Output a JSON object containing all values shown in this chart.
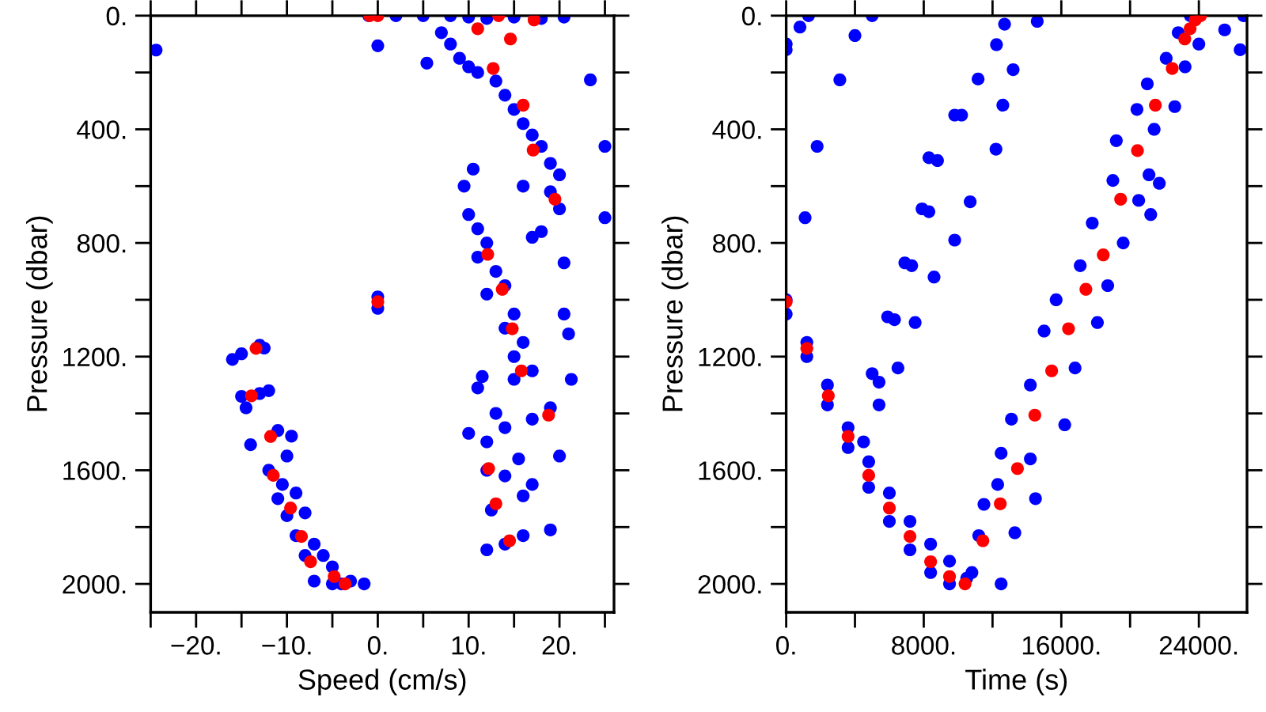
{
  "chart_data": [
    {
      "type": "scatter",
      "xlabel": "Speed (cm/s)",
      "ylabel": "Pressure (dbar)",
      "marker": "circle",
      "grid": false,
      "legend": false,
      "xlim": [
        -25,
        26
      ],
      "ylim": [
        2100,
        0
      ],
      "xticks": [
        {
          "value": -25,
          "label": null
        },
        {
          "value": -20,
          "label": "−20."
        },
        {
          "value": -15,
          "label": null
        },
        {
          "value": -10,
          "label": "−10."
        },
        {
          "value": -5,
          "label": null
        },
        {
          "value": 0,
          "label": "0."
        },
        {
          "value": 5,
          "label": null
        },
        {
          "value": 10,
          "label": "10."
        },
        {
          "value": 15,
          "label": null
        },
        {
          "value": 20,
          "label": "20."
        },
        {
          "value": 25,
          "label": null
        }
      ],
      "yticks": [
        {
          "value": 0,
          "label": "0."
        },
        {
          "value": 200,
          "label": null
        },
        {
          "value": 400,
          "label": "400."
        },
        {
          "value": 600,
          "label": null
        },
        {
          "value": 800,
          "label": "800."
        },
        {
          "value": 1000,
          "label": null
        },
        {
          "value": 1200,
          "label": "1200."
        },
        {
          "value": 1400,
          "label": null
        },
        {
          "value": 1600,
          "label": "1600."
        },
        {
          "value": 1800,
          "label": null
        },
        {
          "value": 2000,
          "label": "2000."
        }
      ],
      "series": [
        {
          "color": "#0000ff",
          "x": [
            -1,
            2,
            5,
            8,
            10,
            12,
            15,
            18,
            20.5,
            -24.4,
            0,
            5.4,
            23.4,
            25,
            25,
            7,
            8,
            9,
            10,
            11,
            13,
            14,
            15,
            16,
            17,
            18,
            19,
            20,
            16,
            19,
            20,
            18,
            17,
            20.5,
            10.5,
            9.5,
            10,
            11,
            12,
            11,
            13,
            14,
            12,
            15,
            14,
            16,
            15,
            17,
            15,
            11,
            11.5,
            19,
            17,
            13,
            10,
            12,
            14,
            15.5,
            20,
            12,
            14,
            16,
            12.5,
            17,
            12,
            14,
            16,
            19,
            21,
            21.3,
            20.5,
            -16,
            -15,
            -13,
            -12.5,
            -15,
            -13,
            -12,
            -14.5,
            -14,
            -11,
            -9.5,
            -10,
            -12,
            -10.5,
            -11,
            -9,
            -10,
            -8,
            -9,
            -7,
            -6,
            -8,
            -5,
            -7,
            -5,
            -3,
            -1.5,
            -4,
            0,
            0
          ],
          "values": [
            0,
            0,
            0,
            0,
            5,
            10,
            5,
            10,
            5,
            121,
            106,
            167,
            226,
            460,
            711,
            60,
            100,
            150,
            180,
            200,
            230,
            280,
            330,
            380,
            420,
            460,
            520,
            560,
            600,
            620,
            680,
            760,
            780,
            870,
            540,
            600,
            700,
            750,
            800,
            850,
            900,
            950,
            980,
            1050,
            1100,
            1150,
            1200,
            1250,
            1280,
            1310,
            1270,
            1380,
            1420,
            1400,
            1470,
            1500,
            1450,
            1560,
            1550,
            1600,
            1620,
            1690,
            1740,
            1650,
            1880,
            1860,
            1830,
            1810,
            1120,
            1280,
            1050,
            1210,
            1190,
            1160,
            1170,
            1340,
            1330,
            1320,
            1380,
            1510,
            1460,
            1480,
            1550,
            1600,
            1650,
            1700,
            1680,
            1760,
            1750,
            1830,
            1860,
            1900,
            1900,
            1940,
            1990,
            2000,
            1990,
            2000,
            2000,
            990,
            1030
          ]
        },
        {
          "color": "#ff0000",
          "x": [
            -0.9,
            0,
            11,
            13.3,
            17.2,
            14.6,
            12.7,
            16,
            17.1,
            19.5,
            12.1,
            13.7,
            14.8,
            15.8,
            18.8,
            12.2,
            13,
            14.5,
            0,
            -13.4,
            -13.9,
            -11.8,
            -11.5,
            -9.6,
            -8.4,
            -7.4,
            -4.8,
            -3.6
          ],
          "values": [
            0,
            0,
            46,
            0,
            15,
            82,
            186,
            315,
            473,
            646,
            840,
            963,
            1102,
            1250,
            1406,
            1594,
            1718,
            1848,
            1007,
            1171,
            1338,
            1481,
            1618,
            1733,
            1833,
            1922,
            1974,
            2000
          ]
        }
      ]
    },
    {
      "type": "scatter",
      "xlabel": "Time (s)",
      "ylabel": "Pressure (dbar)",
      "marker": "circle",
      "grid": false,
      "legend": false,
      "xlim": [
        0,
        26800
      ],
      "ylim": [
        2100,
        0
      ],
      "xticks": [
        {
          "value": 0,
          "label": "0."
        },
        {
          "value": 4000,
          "label": null
        },
        {
          "value": 8000,
          "label": "8000."
        },
        {
          "value": 12000,
          "label": null
        },
        {
          "value": 16000,
          "label": "16000."
        },
        {
          "value": 20000,
          "label": null
        },
        {
          "value": 24000,
          "label": "24000."
        }
      ],
      "yticks": [
        {
          "value": 0,
          "label": "0."
        },
        {
          "value": 200,
          "label": null
        },
        {
          "value": 400,
          "label": "400."
        },
        {
          "value": 600,
          "label": null
        },
        {
          "value": 800,
          "label": "800."
        },
        {
          "value": 1000,
          "label": null
        },
        {
          "value": 1200,
          "label": "1200."
        },
        {
          "value": 1400,
          "label": null
        },
        {
          "value": 1600,
          "label": "1600."
        },
        {
          "value": 1800,
          "label": null
        },
        {
          "value": 2000,
          "label": "2000."
        }
      ],
      "series": [
        {
          "color": "#0000ff",
          "x": [
            0,
            0,
            800,
            1300,
            1100,
            3120,
            1800,
            4000,
            5000,
            11160,
            13200,
            12230,
            12700,
            14600,
            10200,
            9800,
            8300,
            8800,
            7900,
            8300,
            10700,
            12200,
            12600,
            9800,
            6900,
            7300,
            8600,
            5900,
            6300,
            7500,
            5000,
            5400,
            6500,
            5400,
            0,
            0,
            1200,
            1200,
            2400,
            2400,
            3600,
            3600,
            4500,
            4800,
            4800,
            6000,
            6000,
            7200,
            7200,
            8400,
            8400,
            9500,
            9500,
            10500,
            12500,
            10800,
            11200,
            13300,
            11500,
            14500,
            12300,
            14200,
            12500,
            13100,
            16200,
            14200,
            16800,
            15000,
            18100,
            15700,
            18700,
            17100,
            19600,
            17800,
            20500,
            19000,
            21100,
            19200,
            21400,
            20400,
            22600,
            21000,
            23200,
            22100,
            24000,
            22800,
            25500,
            23500,
            26600,
            26400,
            21700,
            21200
          ],
          "values": [
            100,
            120,
            40,
            0,
            711,
            226,
            460,
            70,
            0,
            223,
            190,
            102,
            30,
            20,
            350,
            350,
            500,
            510,
            680,
            690,
            655,
            470,
            315,
            790,
            870,
            880,
            920,
            1060,
            1070,
            1080,
            1260,
            1290,
            1240,
            1370,
            1000,
            1050,
            1150,
            1200,
            1300,
            1370,
            1450,
            1520,
            1500,
            1570,
            1660,
            1680,
            1780,
            1780,
            1880,
            1860,
            1960,
            1920,
            2000,
            1980,
            2000,
            1960,
            1830,
            1820,
            1720,
            1700,
            1650,
            1560,
            1540,
            1420,
            1440,
            1300,
            1240,
            1110,
            1080,
            1000,
            950,
            880,
            800,
            730,
            650,
            580,
            560,
            440,
            400,
            330,
            320,
            240,
            180,
            150,
            100,
            60,
            50,
            0,
            0,
            120,
            590,
            700
          ]
        },
        {
          "color": "#ff0000",
          "x": [
            0,
            1200,
            2450,
            3600,
            4800,
            6000,
            7200,
            8400,
            9500,
            10400,
            11440,
            12450,
            13450,
            14460,
            15440,
            16420,
            17430,
            18440,
            19450,
            20430,
            21470,
            22450,
            23180,
            23490,
            23790,
            24100
          ],
          "values": [
            1007,
            1171,
            1338,
            1481,
            1618,
            1733,
            1833,
            1922,
            1974,
            2000,
            1848,
            1718,
            1594,
            1406,
            1250,
            1102,
            963,
            842,
            646,
            475,
            315,
            186,
            82,
            46,
            15,
            0
          ]
        }
      ]
    }
  ]
}
